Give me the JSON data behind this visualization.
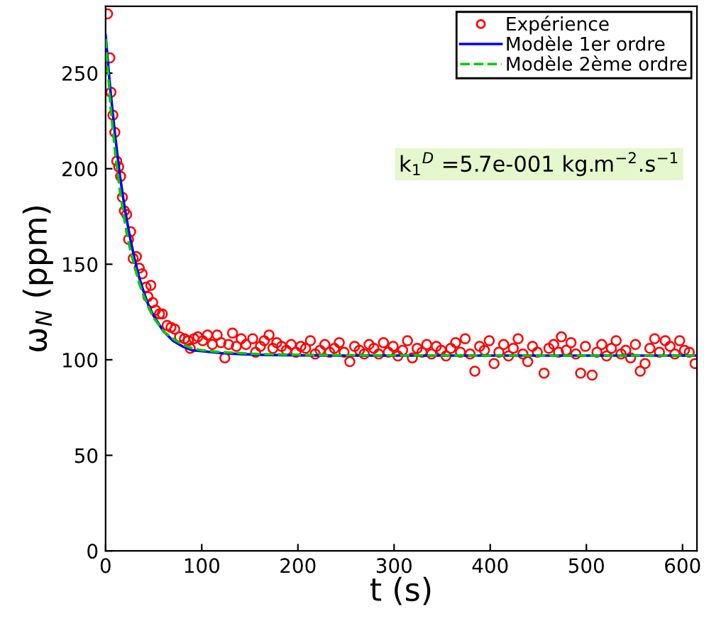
{
  "chart_data": {
    "type": "line",
    "xlabel": "t (s)",
    "ylabel": "ω$_{N}$ (ppm)",
    "xlim": [
      0,
      615
    ],
    "ylim": [
      0,
      285
    ],
    "xticks": [
      0,
      100,
      200,
      300,
      400,
      500,
      600
    ],
    "yticks": [
      0,
      50,
      100,
      150,
      200,
      250
    ],
    "grid": false,
    "legend": "top right",
    "annotations": [
      "k$_{1}$$^{D}$ =5.7e-001 kg.m$^{−2}$.s$^{−1}$"
    ],
    "series": [
      {
        "name": "Expérience",
        "type": "scatter",
        "marker": "circle",
        "color": "#ff0000",
        "x": [
          2,
          4.4,
          5.6,
          7.6,
          9.6,
          11.6,
          13.6,
          15.6,
          17.5,
          19.5,
          21.9,
          23.9,
          26,
          28.7,
          32,
          35,
          38,
          42,
          44,
          47,
          49,
          52,
          56,
          59,
          64,
          68,
          72,
          77,
          82,
          86,
          88,
          92,
          96,
          101,
          106,
          111,
          116,
          120,
          124,
          128,
          132,
          136,
          141,
          146,
          153,
          156,
          161,
          165,
          170,
          174,
          178,
          183,
          188,
          193,
          198,
          203,
          208,
          213,
          218,
          223,
          228,
          233,
          238,
          243,
          248,
          254,
          259,
          264,
          269,
          274,
          279,
          284,
          289,
          294,
          299,
          304,
          309,
          314,
          319,
          324,
          329,
          334,
          339,
          344,
          349,
          354,
          359,
          364,
          369,
          374,
          379,
          384,
          389,
          394,
          399,
          404,
          409,
          414,
          419,
          424,
          429,
          434,
          439,
          444,
          449,
          456,
          461,
          466,
          471,
          474,
          479,
          484,
          489,
          494,
          499,
          506,
          511,
          516,
          521,
          526,
          531,
          536,
          541,
          546,
          551,
          556,
          561,
          566,
          571,
          576,
          582,
          587,
          592,
          597,
          602,
          607,
          613
        ],
        "values": [
          281,
          258,
          240,
          228,
          219,
          204,
          201,
          196,
          185,
          178,
          176,
          163,
          167,
          153,
          154,
          148,
          145,
          138,
          133,
          139,
          130,
          126,
          124,
          124,
          118,
          117,
          116,
          112,
          111,
          110,
          106,
          111,
          112,
          110,
          113,
          108,
          113,
          109,
          101,
          108,
          114,
          107,
          111,
          108,
          111,
          104,
          107,
          110,
          113,
          106,
          109,
          107,
          105,
          108,
          104,
          107,
          106,
          110,
          103,
          105,
          108,
          104,
          106,
          109,
          104,
          99,
          107,
          105,
          103,
          108,
          106,
          103,
          109,
          104,
          107,
          102,
          105,
          110,
          101,
          106,
          104,
          108,
          103,
          107,
          105,
          102,
          106,
          109,
          104,
          111,
          103,
          94,
          107,
          105,
          110,
          98,
          104,
          108,
          102,
          106,
          111,
          103,
          99,
          107,
          104,
          93,
          106,
          108,
          104,
          112,
          105,
          109,
          103,
          93,
          107,
          92,
          104,
          108,
          102,
          106,
          110,
          103,
          105,
          101,
          108,
          94,
          98,
          106,
          111,
          104,
          110,
          107,
          103,
          110,
          105,
          104,
          98
        ]
      },
      {
        "name": "Modèle 1er ordre",
        "line_style": "solid",
        "color": "#0000ff",
        "x": [
          0,
          5,
          10,
          15,
          20,
          25,
          30,
          35,
          40,
          45,
          50,
          60,
          70,
          80,
          90,
          100,
          120,
          140,
          160,
          200,
          250,
          300,
          400,
          500,
          615
        ],
        "values": [
          270,
          241,
          217,
          196,
          179,
          165,
          153,
          143,
          135,
          128,
          123,
          115,
          110,
          107,
          105,
          104.5,
          103.5,
          103,
          102.6,
          102.3,
          102.2,
          102.2,
          102.2,
          102.2,
          102.2
        ]
      },
      {
        "name": "Modèle 2ème ordre",
        "line_style": "dashed",
        "color": "#00cc00",
        "x": [
          0,
          5,
          10,
          15,
          20,
          25,
          30,
          35,
          40,
          45,
          50,
          60,
          70,
          80,
          90,
          100,
          120,
          140,
          160,
          200,
          250,
          300,
          400,
          500,
          615
        ],
        "values": [
          268,
          233,
          208,
          188,
          172,
          159,
          149,
          140,
          133,
          127,
          122,
          115,
          111,
          108,
          106,
          105,
          104,
          103.5,
          103,
          102.6,
          102.4,
          102.3,
          102.2,
          102.2,
          102.2
        ]
      }
    ]
  }
}
